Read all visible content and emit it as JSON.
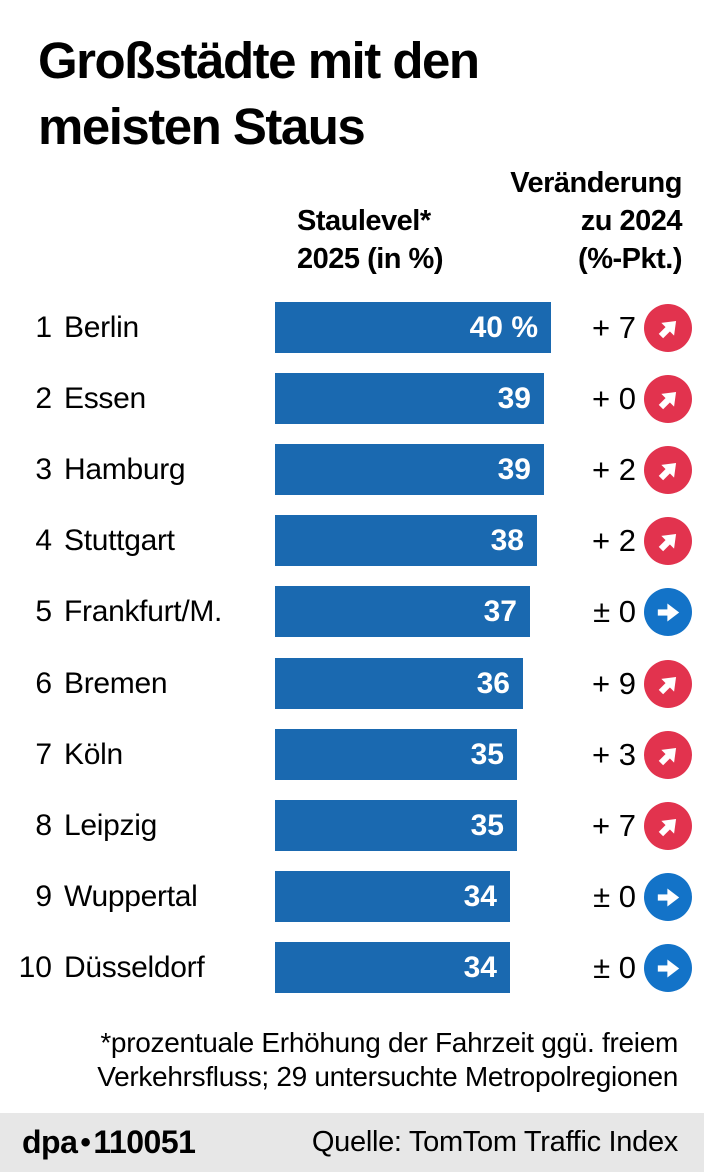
{
  "title": "Großstädte mit den meisten Staus",
  "header": {
    "staulevel": [
      "Staulevel*",
      "2025 (in %)"
    ],
    "veraenderung": [
      "Veränderung",
      "zu 2024",
      "(%-Pkt.)"
    ]
  },
  "rows": [
    {
      "rank": "1",
      "city": "Berlin",
      "value": 40,
      "value_label": "40 %",
      "change": "+ 7",
      "trend": "up"
    },
    {
      "rank": "2",
      "city": "Essen",
      "value": 39,
      "value_label": "39",
      "change": "+ 0",
      "trend": "up"
    },
    {
      "rank": "3",
      "city": "Hamburg",
      "value": 39,
      "value_label": "39",
      "change": "+ 2",
      "trend": "up"
    },
    {
      "rank": "4",
      "city": "Stuttgart",
      "value": 38,
      "value_label": "38",
      "change": "+ 2",
      "trend": "up"
    },
    {
      "rank": "5",
      "city": "Frankfurt/M.",
      "value": 37,
      "value_label": "37",
      "change": "± 0",
      "trend": "right"
    },
    {
      "rank": "6",
      "city": "Bremen",
      "value": 36,
      "value_label": "36",
      "change": "+ 9",
      "trend": "up"
    },
    {
      "rank": "7",
      "city": "Köln",
      "value": 35,
      "value_label": "35",
      "change": "+ 3",
      "trend": "up"
    },
    {
      "rank": "8",
      "city": "Leipzig",
      "value": 35,
      "value_label": "35",
      "change": "+ 7",
      "trend": "up"
    },
    {
      "rank": "9",
      "city": "Wuppertal",
      "value": 34,
      "value_label": "34",
      "change": "± 0",
      "trend": "right"
    },
    {
      "rank": "10",
      "city": "Düsseldorf",
      "value": 34,
      "value_label": "34",
      "change": "± 0",
      "trend": "right"
    }
  ],
  "footnote": {
    "line1": "*prozentuale Erhöhung der Fahrzeit ggü. freiem",
    "line2": "Verkehrsfluss; 29 untersuchte Metropolregionen"
  },
  "footer": {
    "brand": "dpa",
    "separator": "•",
    "code": "110051",
    "source": "Quelle: TomTom Traffic Index"
  },
  "colors": {
    "bar": "#1a69b0",
    "trend_up": "#e2334e",
    "trend_neutral": "#1373c8",
    "footer_bg": "#e7e7e7",
    "text": "#000000",
    "bar_text": "#ffffff"
  },
  "chart_data": {
    "type": "bar",
    "orientation": "horizontal",
    "title": "Großstädte mit den meisten Staus",
    "categories": [
      "Berlin",
      "Essen",
      "Hamburg",
      "Stuttgart",
      "Frankfurt/M.",
      "Bremen",
      "Köln",
      "Leipzig",
      "Wuppertal",
      "Düsseldorf"
    ],
    "series": [
      {
        "name": "Staulevel 2025 (in %)",
        "values": [
          40,
          39,
          39,
          38,
          37,
          36,
          35,
          35,
          34,
          34
        ]
      },
      {
        "name": "Veränderung zu 2024 (%-Pkt.)",
        "values": [
          7,
          0,
          2,
          2,
          0,
          9,
          3,
          7,
          0,
          0
        ]
      }
    ],
    "trend_direction": [
      "up",
      "up",
      "up",
      "up",
      "neutral",
      "up",
      "up",
      "up",
      "neutral",
      "neutral"
    ],
    "xlim": [
      0,
      40
    ],
    "grid": false,
    "legend_position": "none",
    "value_labels_on_bars": true,
    "footnote": "*prozentuale Erhöhung der Fahrzeit ggü. freiem Verkehrsfluss; 29 untersuchte Metropolregionen",
    "source": "Quelle: TomTom Traffic Index"
  }
}
